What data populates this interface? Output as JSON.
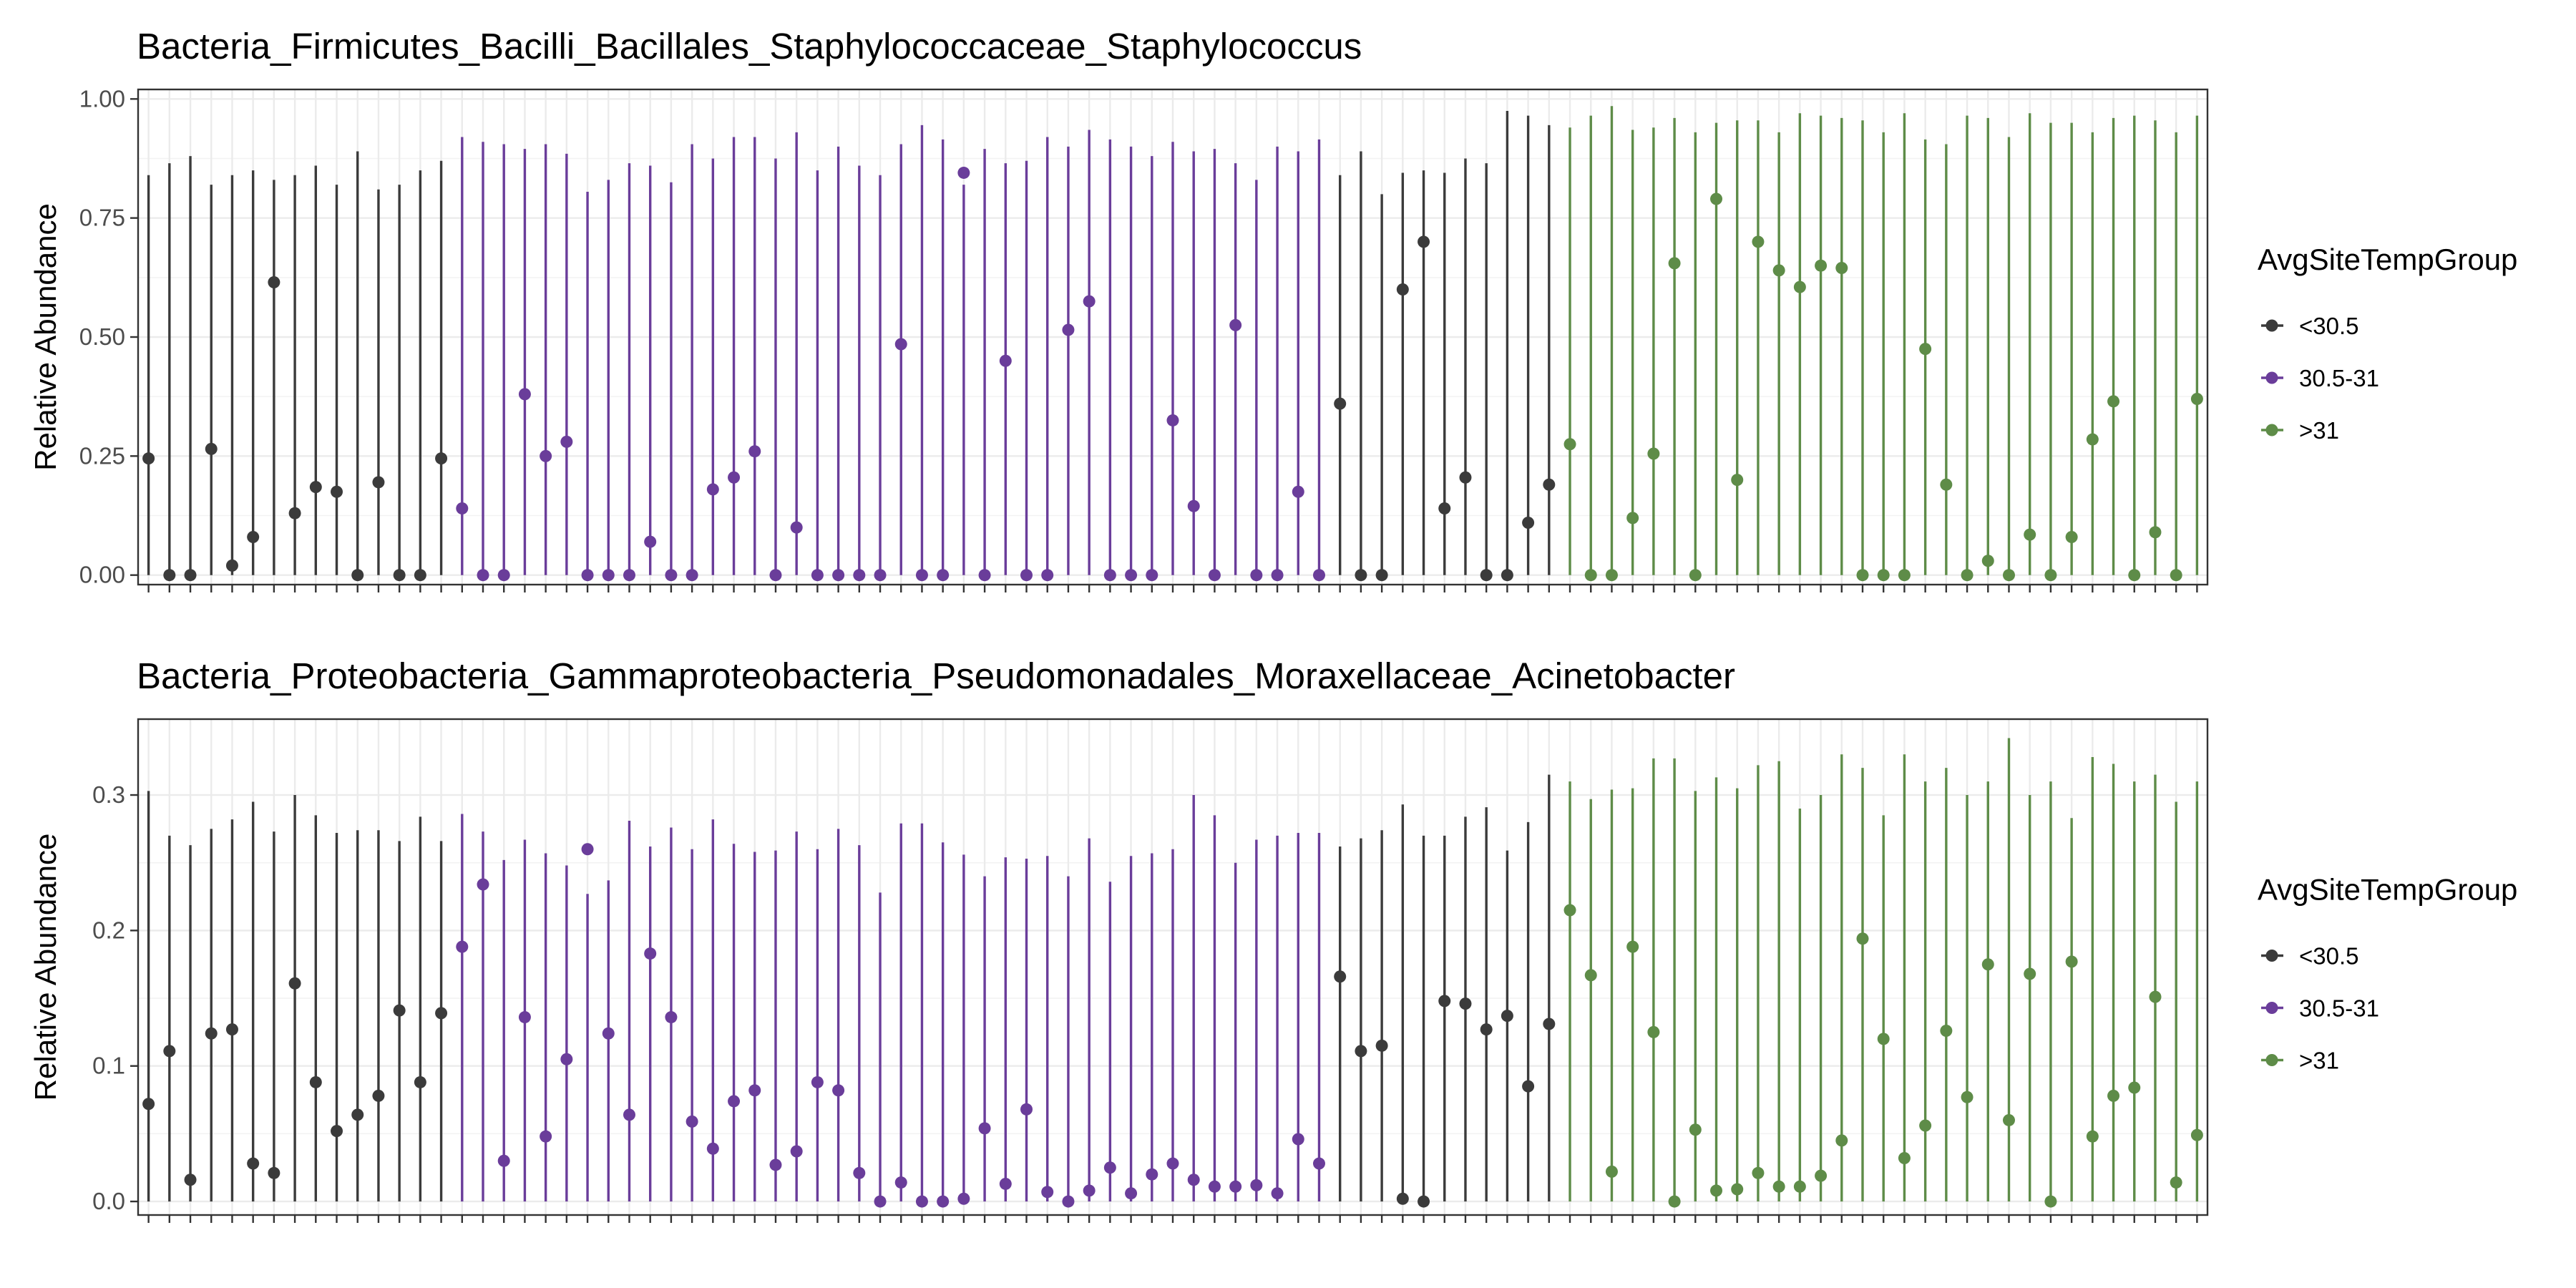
{
  "colors": {
    "lt30_5": "#3b3b3b",
    "mid": "#6a3d9a",
    "gt31": "#5e8c48"
  },
  "chart_data": [
    {
      "type": "scatter",
      "title": "Bacteria_Firmicutes_Bacilli_Bacillales_Staphylococcaceae_Staphylococcus",
      "ylabel": "Relative Abundance",
      "xlabel": "",
      "ylim": [
        -0.02,
        1.02
      ],
      "yticks": [
        0.0,
        0.25,
        0.5,
        0.75,
        1.0
      ],
      "ytick_labels": [
        "0.00",
        "0.25",
        "0.50",
        "0.75",
        "1.00"
      ],
      "grid": true,
      "legend": {
        "title": "AvgSiteTempGroup",
        "position": "right",
        "entries": [
          "<30.5",
          "30.5-31",
          ">31"
        ]
      },
      "groups": [
        "<30.5",
        "<30.5",
        "<30.5",
        "<30.5",
        "<30.5",
        "<30.5",
        "<30.5",
        "<30.5",
        "<30.5",
        "<30.5",
        "<30.5",
        "<30.5",
        "<30.5",
        "<30.5",
        "<30.5",
        "30.5-31",
        "30.5-31",
        "30.5-31",
        "30.5-31",
        "30.5-31",
        "30.5-31",
        "30.5-31",
        "30.5-31",
        "30.5-31",
        "30.5-31",
        "30.5-31",
        "30.5-31",
        "30.5-31",
        "30.5-31",
        "30.5-31",
        "30.5-31",
        "30.5-31",
        "30.5-31",
        "30.5-31",
        "30.5-31",
        "30.5-31",
        "30.5-31",
        "30.5-31",
        "30.5-31",
        "30.5-31",
        "30.5-31",
        "30.5-31",
        "30.5-31",
        "30.5-31",
        "30.5-31",
        "30.5-31",
        "30.5-31",
        "30.5-31",
        "30.5-31",
        "30.5-31",
        "30.5-31",
        "30.5-31",
        "30.5-31",
        "30.5-31",
        "30.5-31",
        "30.5-31",
        "30.5-31",
        "<30.5",
        "<30.5",
        "<30.5",
        "<30.5",
        "<30.5",
        "<30.5",
        "<30.5",
        "<30.5",
        "<30.5",
        "<30.5",
        "<30.5",
        ">31",
        ">31",
        ">31",
        ">31",
        ">31",
        ">31",
        ">31",
        ">31",
        ">31",
        ">31",
        ">31",
        ">31",
        ">31",
        ">31",
        ">31",
        ">31",
        ">31",
        ">31",
        ">31",
        ">31",
        ">31",
        ">31",
        ">31",
        ">31",
        ">31",
        ">31",
        ">31",
        ">31",
        ">31",
        ">31",
        ">31",
        ">31",
        ">31"
      ],
      "values": [
        0.245,
        0.0,
        0.0,
        0.265,
        0.02,
        0.08,
        0.615,
        0.13,
        0.185,
        0.175,
        0.0,
        0.195,
        0.0,
        0.0,
        0.245,
        0.14,
        0.0,
        0.0,
        0.38,
        0.25,
        0.28,
        0.0,
        0.0,
        0.0,
        0.07,
        0.0,
        0.0,
        0.18,
        0.205,
        0.26,
        0.0,
        0.1,
        0.0,
        0.0,
        0.0,
        0.0,
        0.485,
        0.0,
        0.0,
        0.845,
        0.0,
        0.45,
        0.0,
        0.0,
        0.515,
        0.575,
        0.0,
        0.0,
        0.0,
        0.325,
        0.145,
        0.0,
        0.525,
        0.0,
        0.0,
        0.175,
        0.0,
        0.36,
        0.0,
        0.0,
        0.6,
        0.7,
        0.14,
        0.205,
        0.0,
        0.0,
        0.11,
        0.19,
        0.275,
        0.0,
        0.0,
        0.12,
        0.255,
        0.655,
        0.0,
        0.79,
        0.2,
        0.7,
        0.64,
        0.605,
        0.65,
        0.645,
        0.0,
        0.0,
        0.0,
        0.475,
        0.19,
        0.0,
        0.03,
        0.0,
        0.085,
        0.0,
        0.08,
        0.285,
        0.365,
        0.0,
        0.09,
        0.0,
        0.37
      ],
      "upper": [
        0.84,
        0.865,
        0.88,
        0.82,
        0.84,
        0.85,
        0.83,
        0.84,
        0.86,
        0.82,
        0.89,
        0.81,
        0.82,
        0.85,
        0.87,
        0.92,
        0.91,
        0.905,
        0.895,
        0.905,
        0.885,
        0.805,
        0.83,
        0.865,
        0.86,
        0.825,
        0.905,
        0.875,
        0.92,
        0.92,
        0.875,
        0.93,
        0.85,
        0.9,
        0.86,
        0.84,
        0.905,
        0.945,
        0.915,
        0.82,
        0.895,
        0.865,
        0.87,
        0.92,
        0.9,
        0.935,
        0.915,
        0.9,
        0.88,
        0.91,
        0.89,
        0.895,
        0.865,
        0.83,
        0.9,
        0.89,
        0.915,
        0.84,
        0.89,
        0.8,
        0.845,
        0.85,
        0.845,
        0.875,
        0.865,
        0.975,
        0.965,
        0.945,
        0.94,
        0.965,
        0.985,
        0.935,
        0.94,
        0.96,
        0.93,
        0.95,
        0.955,
        0.955,
        0.93,
        0.97,
        0.965,
        0.96,
        0.955,
        0.93,
        0.97,
        0.915,
        0.905,
        0.965,
        0.96,
        0.92,
        0.97,
        0.95,
        0.95,
        0.93,
        0.96,
        0.965,
        0.955,
        0.93,
        0.965
      ]
    },
    {
      "type": "scatter",
      "title": "Bacteria_Proteobacteria_Gammaproteobacteria_Pseudomonadales_Moraxellaceae_Acinetobacter",
      "ylabel": "Relative Abundance",
      "xlabel": "",
      "ylim": [
        -0.01,
        0.356
      ],
      "yticks": [
        0.0,
        0.1,
        0.2,
        0.3
      ],
      "ytick_labels": [
        "0.0",
        "0.1",
        "0.2",
        "0.3"
      ],
      "grid": true,
      "legend": {
        "title": "AvgSiteTempGroup",
        "position": "right",
        "entries": [
          "<30.5",
          "30.5-31",
          ">31"
        ]
      },
      "groups": [
        "<30.5",
        "<30.5",
        "<30.5",
        "<30.5",
        "<30.5",
        "<30.5",
        "<30.5",
        "<30.5",
        "<30.5",
        "<30.5",
        "<30.5",
        "<30.5",
        "<30.5",
        "<30.5",
        "<30.5",
        "30.5-31",
        "30.5-31",
        "30.5-31",
        "30.5-31",
        "30.5-31",
        "30.5-31",
        "30.5-31",
        "30.5-31",
        "30.5-31",
        "30.5-31",
        "30.5-31",
        "30.5-31",
        "30.5-31",
        "30.5-31",
        "30.5-31",
        "30.5-31",
        "30.5-31",
        "30.5-31",
        "30.5-31",
        "30.5-31",
        "30.5-31",
        "30.5-31",
        "30.5-31",
        "30.5-31",
        "30.5-31",
        "30.5-31",
        "30.5-31",
        "30.5-31",
        "30.5-31",
        "30.5-31",
        "30.5-31",
        "30.5-31",
        "30.5-31",
        "30.5-31",
        "30.5-31",
        "30.5-31",
        "30.5-31",
        "30.5-31",
        "30.5-31",
        "30.5-31",
        "30.5-31",
        "30.5-31",
        "<30.5",
        "<30.5",
        "<30.5",
        "<30.5",
        "<30.5",
        "<30.5",
        "<30.5",
        "<30.5",
        "<30.5",
        "<30.5",
        "<30.5",
        ">31",
        ">31",
        ">31",
        ">31",
        ">31",
        ">31",
        ">31",
        ">31",
        ">31",
        ">31",
        ">31",
        ">31",
        ">31",
        ">31",
        ">31",
        ">31",
        ">31",
        ">31",
        ">31",
        ">31",
        ">31",
        ">31",
        ">31",
        ">31",
        ">31",
        ">31",
        ">31",
        ">31",
        ">31",
        ">31",
        ">31",
        ">31",
        ">31"
      ],
      "values": [
        0.072,
        0.111,
        0.016,
        0.124,
        0.127,
        0.028,
        0.021,
        0.161,
        0.088,
        0.052,
        0.064,
        0.078,
        0.141,
        0.088,
        0.139,
        0.188,
        0.234,
        0.03,
        0.136,
        0.048,
        0.105,
        0.26,
        0.124,
        0.064,
        0.183,
        0.136,
        0.059,
        0.039,
        0.074,
        0.082,
        0.027,
        0.037,
        0.088,
        0.082,
        0.021,
        0.0,
        0.014,
        0.0,
        0.0,
        0.002,
        0.054,
        0.013,
        0.068,
        0.007,
        0.0,
        0.008,
        0.025,
        0.006,
        0.02,
        0.028,
        0.016,
        0.011,
        0.011,
        0.012,
        0.006,
        0.046,
        0.028,
        0.166,
        0.111,
        0.115,
        0.002,
        0.0,
        0.148,
        0.146,
        0.127,
        0.137,
        0.085,
        0.131,
        0.215,
        0.167,
        0.022,
        0.188,
        0.125,
        0.0,
        0.053,
        0.008,
        0.009,
        0.021,
        0.011,
        0.011,
        0.019,
        0.045,
        0.194,
        0.12,
        0.032,
        0.056,
        0.126,
        0.077,
        0.175,
        0.06,
        0.168,
        0.0,
        0.177,
        0.048,
        0.078,
        0.084,
        0.151,
        0.014,
        0.049
      ],
      "upper": [
        0.303,
        0.27,
        0.263,
        0.275,
        0.282,
        0.295,
        0.273,
        0.3,
        0.285,
        0.272,
        0.274,
        0.274,
        0.266,
        0.284,
        0.266,
        0.286,
        0.273,
        0.252,
        0.267,
        0.257,
        0.248,
        0.227,
        0.237,
        0.281,
        0.262,
        0.276,
        0.26,
        0.282,
        0.264,
        0.258,
        0.259,
        0.273,
        0.26,
        0.275,
        0.263,
        0.228,
        0.279,
        0.279,
        0.265,
        0.256,
        0.24,
        0.254,
        0.253,
        0.255,
        0.24,
        0.268,
        0.236,
        0.255,
        0.257,
        0.26,
        0.3,
        0.285,
        0.25,
        0.267,
        0.27,
        0.272,
        0.272,
        0.262,
        0.268,
        0.274,
        0.293,
        0.27,
        0.27,
        0.284,
        0.291,
        0.259,
        0.28,
        0.315,
        0.31,
        0.297,
        0.304,
        0.305,
        0.327,
        0.327,
        0.303,
        0.313,
        0.305,
        0.322,
        0.325,
        0.29,
        0.3,
        0.33,
        0.32,
        0.285,
        0.33,
        0.31,
        0.32,
        0.3,
        0.31,
        0.342,
        0.3,
        0.31,
        0.283,
        0.328,
        0.323,
        0.31,
        0.315,
        0.295,
        0.31
      ]
    }
  ]
}
